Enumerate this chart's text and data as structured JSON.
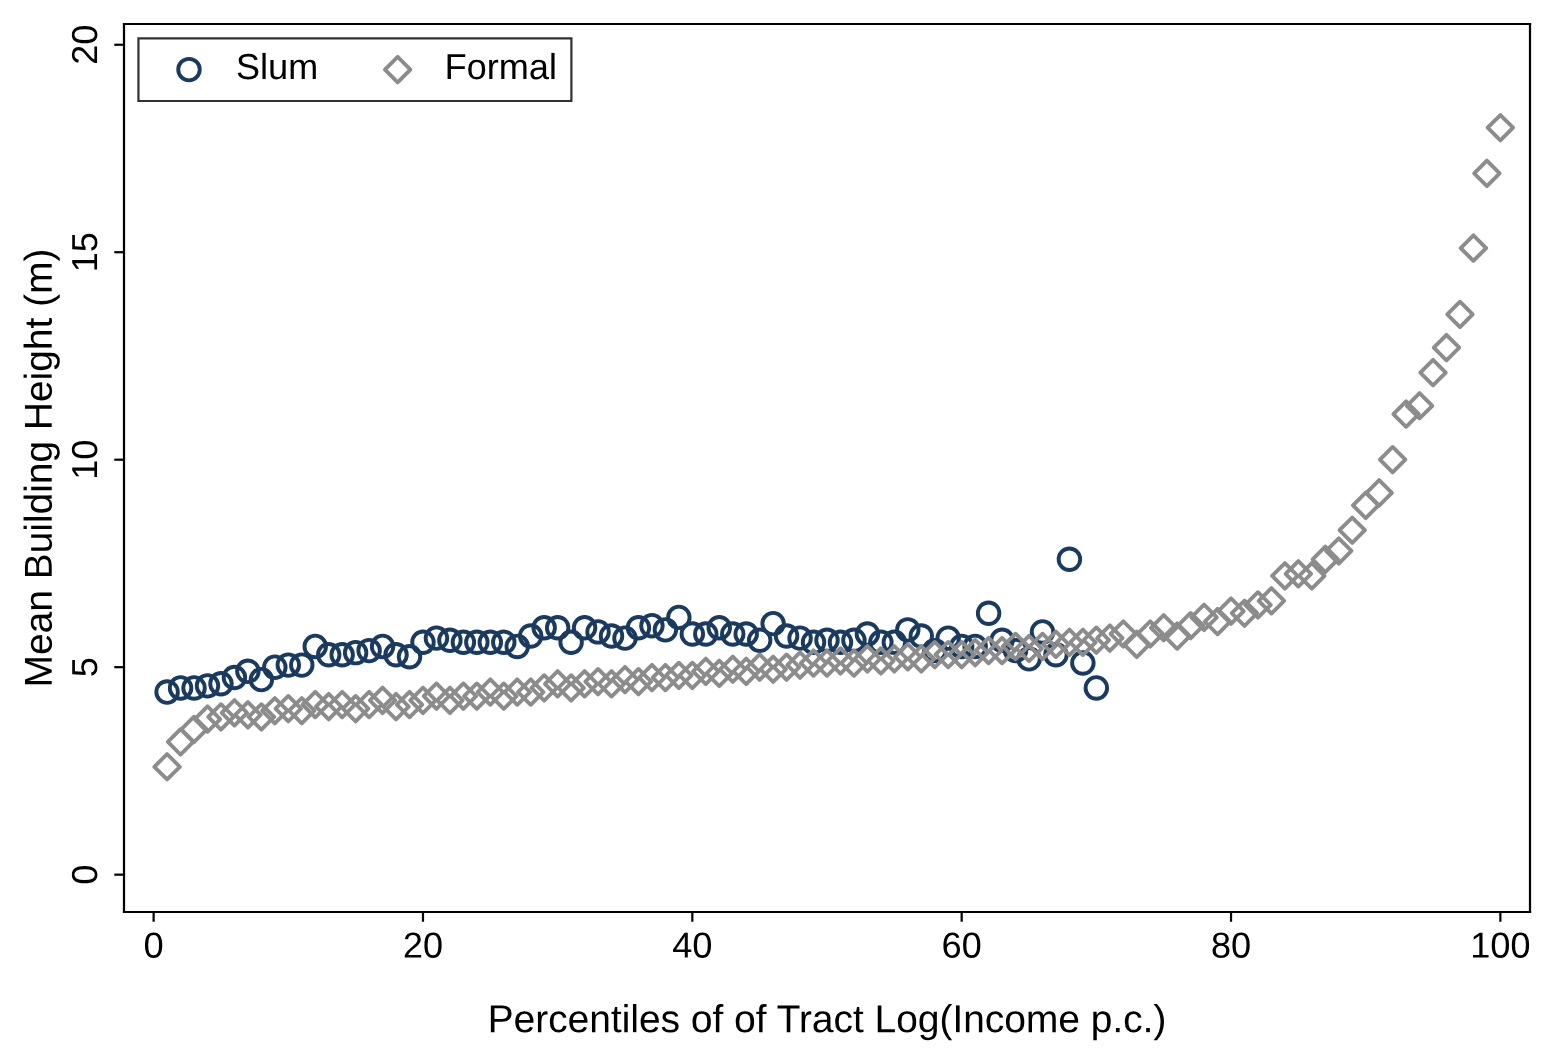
{
  "chart_data": {
    "type": "scatter",
    "xlabel": "Percentiles of of Tract Log(Income p.c.)",
    "ylabel": "Mean Building Height (m)",
    "xlim": [
      -2.2,
      102.2
    ],
    "ylim": [
      -0.9,
      20.5
    ],
    "xticks": [
      0,
      20,
      40,
      60,
      80,
      100
    ],
    "yticks": [
      0,
      5,
      10,
      15,
      20
    ],
    "grid": false,
    "legend": "top left",
    "series": [
      {
        "name": "Slum",
        "color": "#1a3a5f",
        "marker": "circle",
        "x": [
          1,
          2,
          3,
          4,
          5,
          6,
          7,
          8,
          9,
          10,
          11,
          12,
          13,
          14,
          15,
          16,
          17,
          18,
          19,
          20,
          21,
          22,
          23,
          24,
          25,
          26,
          27,
          28,
          29,
          30,
          31,
          32,
          33,
          34,
          35,
          36,
          37,
          38,
          39,
          40,
          41,
          42,
          43,
          44,
          45,
          46,
          47,
          48,
          49,
          50,
          51,
          52,
          53,
          54,
          55,
          56,
          57,
          58,
          59,
          60,
          61,
          62,
          63,
          64,
          65,
          66,
          67,
          68,
          69,
          70
        ],
        "values": [
          4.4,
          4.5,
          4.5,
          4.55,
          4.6,
          4.75,
          4.9,
          4.7,
          5.0,
          5.05,
          5.05,
          5.5,
          5.3,
          5.3,
          5.35,
          5.4,
          5.5,
          5.3,
          5.25,
          5.6,
          5.7,
          5.65,
          5.6,
          5.6,
          5.6,
          5.6,
          5.5,
          5.75,
          5.95,
          5.95,
          5.6,
          5.95,
          5.85,
          5.75,
          5.7,
          5.95,
          6.0,
          5.9,
          6.2,
          5.8,
          5.8,
          5.95,
          5.8,
          5.8,
          5.65,
          6.05,
          5.75,
          5.7,
          5.6,
          5.65,
          5.6,
          5.65,
          5.8,
          5.6,
          5.6,
          5.9,
          5.75,
          5.4,
          5.7,
          5.5,
          5.5,
          6.3,
          5.65,
          5.4,
          5.2,
          5.85,
          5.3,
          7.6,
          5.1,
          4.5
        ]
      },
      {
        "name": "Formal",
        "color": "#8c8c8c",
        "marker": "diamond",
        "x": [
          1,
          2,
          3,
          4,
          5,
          6,
          7,
          8,
          9,
          10,
          11,
          12,
          13,
          14,
          15,
          16,
          17,
          18,
          19,
          20,
          21,
          22,
          23,
          24,
          25,
          26,
          27,
          28,
          29,
          30,
          31,
          32,
          33,
          34,
          35,
          36,
          37,
          38,
          39,
          40,
          41,
          42,
          43,
          44,
          45,
          46,
          47,
          48,
          49,
          50,
          51,
          52,
          53,
          54,
          55,
          56,
          57,
          58,
          59,
          60,
          61,
          62,
          63,
          64,
          65,
          66,
          67,
          68,
          69,
          70,
          71,
          72,
          73,
          74,
          75,
          76,
          77,
          78,
          79,
          80,
          81,
          82,
          83,
          84,
          85,
          86,
          87,
          88,
          89,
          90,
          91,
          92,
          93,
          94,
          95,
          96,
          97,
          98,
          99,
          100
        ],
        "values": [
          2.6,
          3.2,
          3.5,
          3.75,
          3.8,
          3.9,
          3.85,
          3.8,
          3.95,
          4.0,
          3.95,
          4.1,
          4.05,
          4.1,
          4.0,
          4.1,
          4.2,
          4.05,
          4.1,
          4.2,
          4.3,
          4.2,
          4.3,
          4.3,
          4.4,
          4.3,
          4.4,
          4.4,
          4.5,
          4.6,
          4.5,
          4.6,
          4.65,
          4.6,
          4.7,
          4.65,
          4.75,
          4.75,
          4.8,
          4.8,
          4.9,
          4.85,
          4.95,
          4.9,
          5.0,
          4.95,
          5.0,
          5.05,
          5.1,
          5.1,
          5.15,
          5.1,
          5.2,
          5.15,
          5.2,
          5.25,
          5.2,
          5.3,
          5.3,
          5.3,
          5.35,
          5.4,
          5.4,
          5.5,
          5.45,
          5.5,
          5.55,
          5.6,
          5.6,
          5.65,
          5.7,
          5.8,
          5.55,
          5.8,
          5.95,
          5.75,
          6.0,
          6.2,
          6.1,
          6.35,
          6.3,
          6.5,
          6.6,
          7.2,
          7.25,
          7.2,
          7.6,
          7.8,
          8.3,
          8.9,
          9.2,
          10.0,
          11.1,
          11.3,
          12.1,
          12.7,
          13.5,
          15.1,
          16.9,
          18.0
        ]
      }
    ]
  }
}
